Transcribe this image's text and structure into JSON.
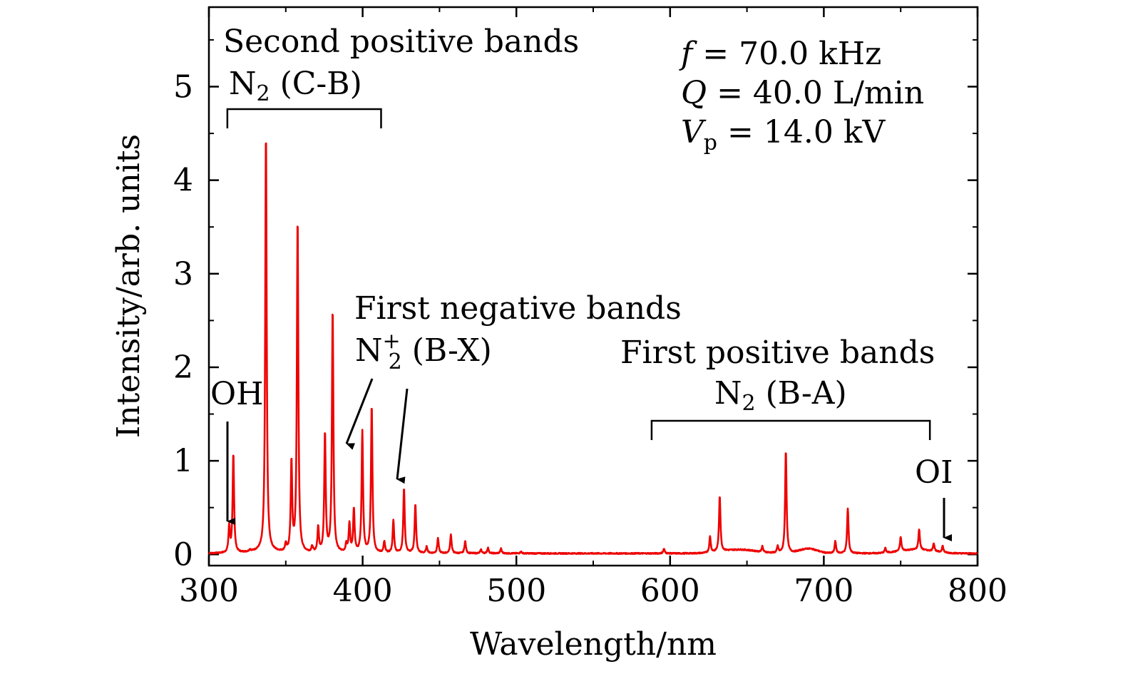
{
  "colors": {
    "spectrum": "#ee0000",
    "axis": "#000000",
    "annotation": "#000000"
  },
  "chart_data": {
    "type": "line",
    "title": "",
    "xlabel": "Wavelength/nm",
    "ylabel": "Intensity/arb. units",
    "xlim": [
      300,
      800
    ],
    "ylim": [
      -0.12,
      5.85
    ],
    "xticks": [
      300,
      400,
      500,
      600,
      700,
      800
    ],
    "xtick_labels": [
      "300",
      "400",
      "500",
      "600",
      "700",
      "800"
    ],
    "yticks": [
      0,
      1,
      2,
      3,
      4,
      5
    ],
    "ytick_labels": [
      "0",
      "1",
      "2",
      "3",
      "4",
      "5"
    ],
    "baseline": 0.01,
    "series": [
      {
        "name": "emission spectrum",
        "peaks": [
          {
            "x": 313.2,
            "h": 0.28
          },
          {
            "x": 315.9,
            "h": 1.06
          },
          {
            "x": 326.8,
            "h": 0.02
          },
          {
            "x": 337.1,
            "h": 4.5
          },
          {
            "x": 350.0,
            "h": 0.08
          },
          {
            "x": 353.7,
            "h": 0.96
          },
          {
            "x": 357.7,
            "h": 3.58
          },
          {
            "x": 367.2,
            "h": 0.06
          },
          {
            "x": 371.1,
            "h": 0.27
          },
          {
            "x": 375.5,
            "h": 1.28
          },
          {
            "x": 380.5,
            "h": 2.61
          },
          {
            "x": 389.4,
            "h": 0.09
          },
          {
            "x": 391.4,
            "h": 0.31
          },
          {
            "x": 394.3,
            "h": 0.47
          },
          {
            "x": 399.8,
            "h": 1.3
          },
          {
            "x": 405.9,
            "h": 1.58
          },
          {
            "x": 414.1,
            "h": 0.12
          },
          {
            "x": 420.0,
            "h": 0.35
          },
          {
            "x": 426.9,
            "h": 0.7
          },
          {
            "x": 434.3,
            "h": 0.53
          },
          {
            "x": 441.7,
            "h": 0.07
          },
          {
            "x": 449.0,
            "h": 0.16
          },
          {
            "x": 457.4,
            "h": 0.2
          },
          {
            "x": 466.7,
            "h": 0.13
          },
          {
            "x": 477.0,
            "h": 0.04
          },
          {
            "x": 481.5,
            "h": 0.06
          },
          {
            "x": 490.0,
            "h": 0.05
          },
          {
            "x": 503.0,
            "h": 0.02
          },
          {
            "x": 596.0,
            "h": 0.05
          },
          {
            "x": 626.0,
            "h": 0.17
          },
          {
            "x": 632.3,
            "h": 0.6
          },
          {
            "x": 660.0,
            "h": 0.06
          },
          {
            "x": 670.0,
            "h": 0.07
          },
          {
            "x": 675.3,
            "h": 1.1
          },
          {
            "x": 707.5,
            "h": 0.13
          },
          {
            "x": 715.6,
            "h": 0.48
          },
          {
            "x": 740.0,
            "h": 0.05
          },
          {
            "x": 750.0,
            "h": 0.15
          },
          {
            "x": 762.0,
            "h": 0.22
          },
          {
            "x": 771.5,
            "h": 0.09
          },
          {
            "x": 777.3,
            "h": 0.07
          }
        ],
        "broad": [
          {
            "x": 645,
            "h": 0.04,
            "w": 15
          },
          {
            "x": 690,
            "h": 0.05,
            "w": 8
          },
          {
            "x": 760,
            "h": 0.04,
            "w": 15
          },
          {
            "x": 335,
            "h": 0.02,
            "w": 12
          }
        ]
      }
    ],
    "annotations": {
      "second_positive": {
        "title": "Second positive bands",
        "label": "N",
        "subscript": "2",
        "suffix": " (C-B)",
        "range": [
          312,
          412
        ]
      },
      "first_negative": {
        "title": "First negative bands",
        "label": "N",
        "subscript": "2",
        "superscript": "+",
        "suffix": " (B-X)"
      },
      "first_positive": {
        "title": "First positive bands",
        "label": "N",
        "subscript": "2",
        "suffix": " (B-A)",
        "range": [
          588,
          769
        ]
      },
      "oh": {
        "label": "OH"
      },
      "oi": {
        "label": "OI"
      }
    },
    "conditions": [
      {
        "var": "f",
        "sub": "",
        "eq": " = ",
        "value": "70.0 kHz"
      },
      {
        "var": "Q",
        "sub": "",
        "eq": " = ",
        "value": "40.0 L/min"
      },
      {
        "var": "V",
        "sub": "p",
        "eq": " = ",
        "value": "14.0 kV"
      }
    ]
  }
}
